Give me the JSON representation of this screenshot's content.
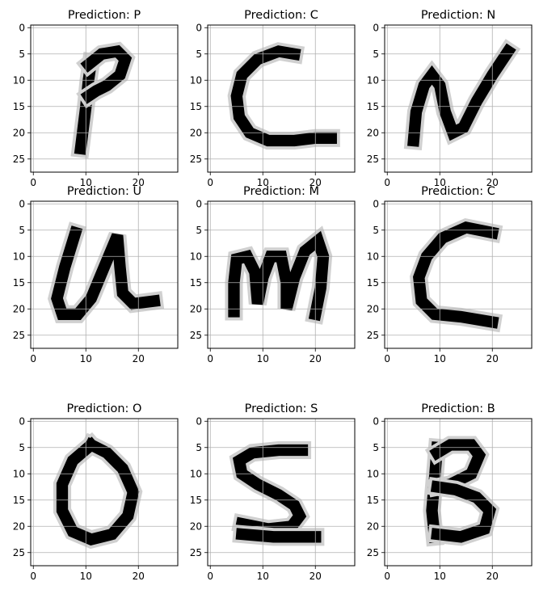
{
  "chart_data": {
    "type": "heatmap",
    "grid": true,
    "xticks": [
      "0",
      "10",
      "20"
    ],
    "yticks": [
      "0",
      "5",
      "10",
      "15",
      "20",
      "25"
    ],
    "xlim": [
      -0.5,
      27.5
    ],
    "ylim": [
      27.5,
      -0.5
    ],
    "colormap": "gray_r",
    "panels": [
      {
        "title": "Prediction: P"
      },
      {
        "title": "Prediction: C"
      },
      {
        "title": "Prediction: N"
      },
      {
        "title": "Prediction: U"
      },
      {
        "title": "Prediction: M"
      },
      {
        "title": "Prediction: C"
      },
      {
        "title": "Prediction: O"
      },
      {
        "title": "Prediction: S"
      },
      {
        "title": "Prediction: B"
      }
    ]
  }
}
